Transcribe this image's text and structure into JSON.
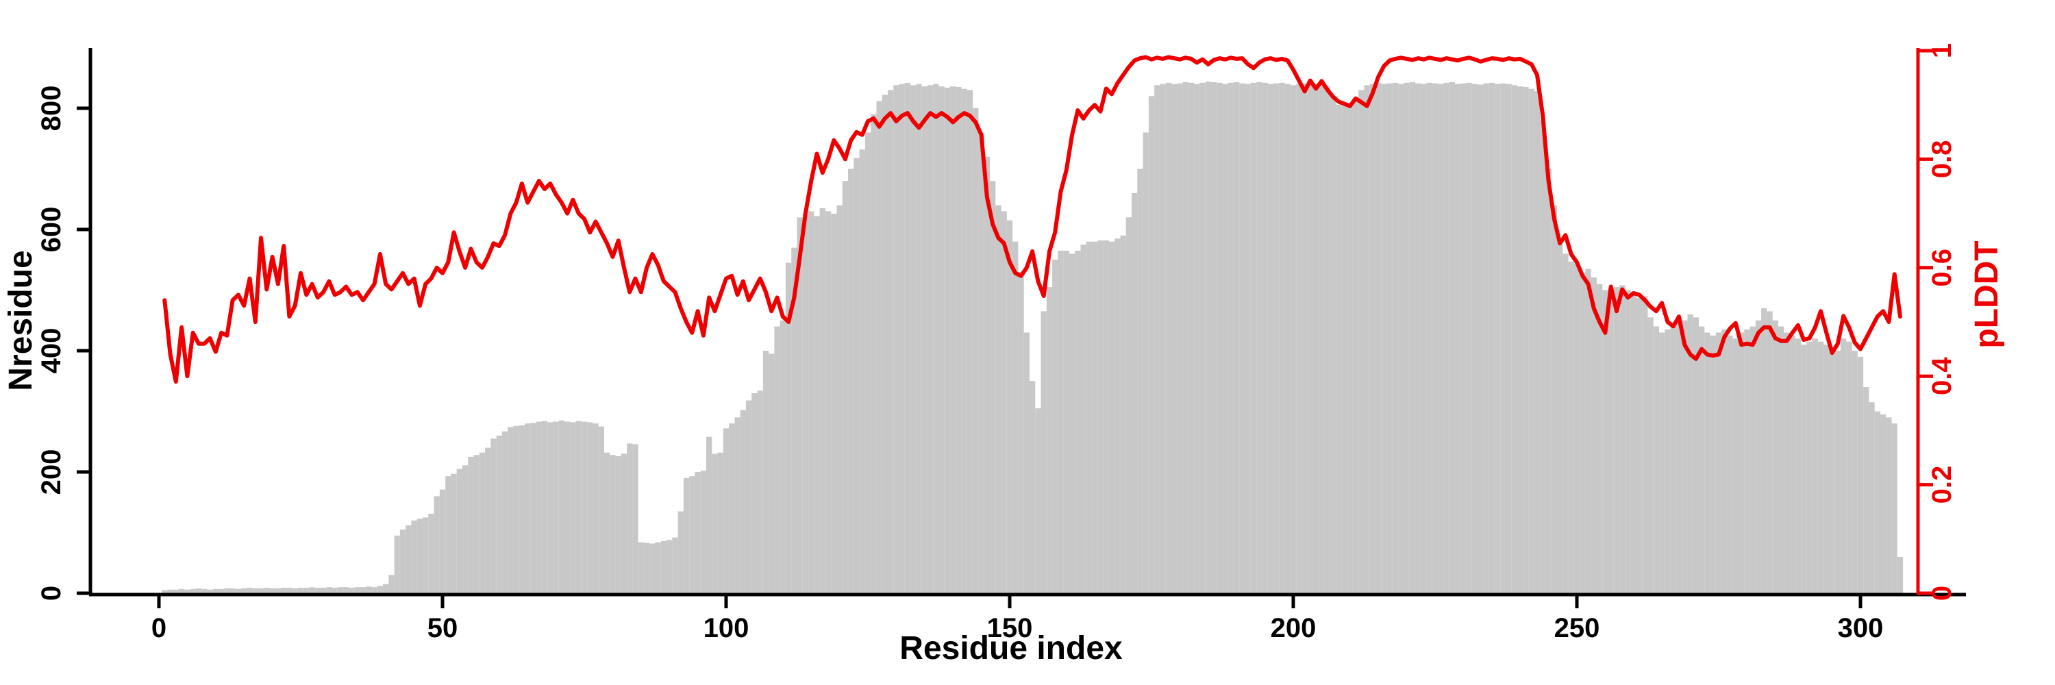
{
  "chart_data": {
    "type": "bar+line",
    "title": "",
    "x_label": "Residue index",
    "x": {
      "first_residue": 1,
      "last_residue": 307,
      "ticks": [
        0,
        50,
        100,
        150,
        200,
        250,
        300
      ]
    },
    "y_left": {
      "label": "Nresidue",
      "lim": [
        0,
        900
      ],
      "ticks": [
        0,
        200,
        400,
        600,
        800
      ],
      "color": "#000000"
    },
    "y_right": {
      "label": "pLDDT",
      "lim": [
        0,
        1
      ],
      "ticks": [
        0,
        0.2,
        0.4,
        0.6,
        0.8,
        1
      ],
      "color": "#ee0000"
    },
    "grid": false,
    "legend": "none",
    "series": [
      {
        "name": "Nresidue",
        "type": "bar",
        "axis": "left",
        "color": "#c8c8c8",
        "values": [
          5,
          6,
          6,
          7,
          6,
          7,
          8,
          7,
          6,
          7,
          7,
          8,
          8,
          7,
          8,
          9,
          8,
          8,
          9,
          8,
          8,
          9,
          9,
          8,
          9,
          9,
          10,
          9,
          9,
          10,
          9,
          10,
          10,
          9,
          10,
          10,
          11,
          10,
          12,
          15,
          30,
          95,
          105,
          112,
          120,
          123,
          125,
          131,
          160,
          171,
          193,
          197,
          205,
          211,
          225,
          228,
          232,
          240,
          255,
          260,
          267,
          274,
          276,
          277,
          280,
          281,
          283,
          284,
          282,
          283,
          285,
          283,
          282,
          284,
          283,
          282,
          280,
          275,
          232,
          228,
          226,
          230,
          247,
          246,
          84,
          83,
          82,
          84,
          86,
          88,
          92,
          135,
          190,
          193,
          200,
          202,
          258,
          230,
          232,
          272,
          280,
          290,
          302,
          318,
          330,
          334,
          400,
          395,
          440,
          450,
          545,
          570,
          620,
          625,
          630,
          622,
          635,
          630,
          626,
          640,
          680,
          700,
          718,
          732,
          760,
          790,
          812,
          822,
          830,
          838,
          840,
          842,
          838,
          840,
          836,
          838,
          840,
          836,
          834,
          836,
          835,
          832,
          830,
          800,
          760,
          720,
          680,
          640,
          630,
          615,
          580,
          530,
          430,
          350,
          305,
          465,
          505,
          550,
          565,
          565,
          560,
          565,
          575,
          580,
          580,
          582,
          582,
          580,
          585,
          590,
          620,
          660,
          700,
          760,
          820,
          838,
          840,
          842,
          840,
          841,
          843,
          842,
          840,
          842,
          844,
          843,
          842,
          840,
          842,
          843,
          841,
          840,
          842,
          843,
          842,
          840,
          841,
          842,
          840,
          838,
          840,
          841,
          839,
          840,
          838,
          836,
          820,
          806,
          804,
          808,
          812,
          830,
          838,
          840,
          842,
          840,
          841,
          842,
          840,
          842,
          843,
          841,
          840,
          842,
          841,
          840,
          842,
          843,
          840,
          841,
          842,
          840,
          839,
          841,
          842,
          840,
          841,
          840,
          838,
          836,
          835,
          832,
          828,
          780,
          700,
          640,
          580,
          560,
          547,
          544,
          528,
          535,
          521,
          510,
          500,
          503,
          505,
          508,
          500,
          497,
          487,
          490,
          455,
          440,
          430,
          435,
          440,
          445,
          450,
          460,
          455,
          440,
          430,
          425,
          430,
          435,
          425,
          420,
          430,
          435,
          440,
          450,
          470,
          465,
          450,
          440,
          430,
          425,
          420,
          410,
          415,
          420,
          415,
          410,
          405,
          400,
          420,
          415,
          400,
          390,
          340,
          315,
          300,
          295,
          290,
          280,
          60
        ]
      },
      {
        "name": "pLDDT",
        "type": "line",
        "axis": "right",
        "color": "#ee0000",
        "values": [
          0.54,
          0.44,
          0.39,
          0.49,
          0.4,
          0.48,
          0.46,
          0.46,
          0.47,
          0.445,
          0.48,
          0.475,
          0.54,
          0.55,
          0.53,
          0.58,
          0.5,
          0.655,
          0.56,
          0.62,
          0.57,
          0.64,
          0.51,
          0.53,
          0.59,
          0.55,
          0.57,
          0.545,
          0.555,
          0.575,
          0.55,
          0.555,
          0.565,
          0.55,
          0.555,
          0.54,
          0.555,
          0.57,
          0.625,
          0.57,
          0.56,
          0.575,
          0.59,
          0.57,
          0.58,
          0.53,
          0.57,
          0.58,
          0.6,
          0.59,
          0.61,
          0.665,
          0.63,
          0.6,
          0.635,
          0.61,
          0.6,
          0.62,
          0.645,
          0.64,
          0.66,
          0.7,
          0.72,
          0.755,
          0.72,
          0.74,
          0.76,
          0.745,
          0.755,
          0.735,
          0.72,
          0.7,
          0.725,
          0.7,
          0.69,
          0.665,
          0.685,
          0.665,
          0.645,
          0.62,
          0.65,
          0.6,
          0.555,
          0.58,
          0.555,
          0.6,
          0.625,
          0.605,
          0.575,
          0.565,
          0.555,
          0.525,
          0.5,
          0.48,
          0.52,
          0.475,
          0.545,
          0.52,
          0.55,
          0.58,
          0.585,
          0.55,
          0.575,
          0.54,
          0.56,
          0.58,
          0.555,
          0.52,
          0.545,
          0.51,
          0.5,
          0.545,
          0.62,
          0.7,
          0.76,
          0.81,
          0.775,
          0.8,
          0.835,
          0.82,
          0.8,
          0.835,
          0.85,
          0.845,
          0.87,
          0.875,
          0.86,
          0.875,
          0.885,
          0.87,
          0.88,
          0.885,
          0.87,
          0.858,
          0.872,
          0.885,
          0.878,
          0.885,
          0.878,
          0.868,
          0.878,
          0.885,
          0.88,
          0.868,
          0.845,
          0.73,
          0.68,
          0.655,
          0.645,
          0.61,
          0.59,
          0.585,
          0.6,
          0.63,
          0.575,
          0.548,
          0.63,
          0.665,
          0.74,
          0.78,
          0.845,
          0.89,
          0.875,
          0.89,
          0.9,
          0.888,
          0.93,
          0.92,
          0.94,
          0.955,
          0.97,
          0.982,
          0.986,
          0.988,
          0.984,
          0.987,
          0.985,
          0.988,
          0.986,
          0.984,
          0.987,
          0.985,
          0.978,
          0.984,
          0.975,
          0.983,
          0.986,
          0.984,
          0.987,
          0.985,
          0.986,
          0.975,
          0.968,
          0.978,
          0.984,
          0.986,
          0.983,
          0.985,
          0.982,
          0.965,
          0.945,
          0.925,
          0.945,
          0.93,
          0.944,
          0.928,
          0.915,
          0.906,
          0.902,
          0.898,
          0.912,
          0.905,
          0.898,
          0.922,
          0.952,
          0.972,
          0.982,
          0.985,
          0.987,
          0.985,
          0.983,
          0.986,
          0.984,
          0.987,
          0.985,
          0.983,
          0.986,
          0.984,
          0.982,
          0.985,
          0.987,
          0.984,
          0.98,
          0.983,
          0.986,
          0.985,
          0.983,
          0.986,
          0.984,
          0.985,
          0.98,
          0.975,
          0.955,
          0.88,
          0.76,
          0.69,
          0.645,
          0.66,
          0.625,
          0.61,
          0.585,
          0.57,
          0.525,
          0.5,
          0.48,
          0.565,
          0.52,
          0.56,
          0.545,
          0.553,
          0.55,
          0.54,
          0.528,
          0.52,
          0.535,
          0.5,
          0.492,
          0.51,
          0.458,
          0.44,
          0.432,
          0.45,
          0.44,
          0.438,
          0.44,
          0.472,
          0.488,
          0.498,
          0.458,
          0.46,
          0.458,
          0.48,
          0.49,
          0.49,
          0.47,
          0.465,
          0.465,
          0.48,
          0.494,
          0.467,
          0.47,
          0.49,
          0.52,
          0.48,
          0.443,
          0.46,
          0.511,
          0.49,
          0.462,
          0.45,
          0.47,
          0.49,
          0.51,
          0.52,
          0.5,
          0.588,
          0.51
        ]
      }
    ]
  }
}
